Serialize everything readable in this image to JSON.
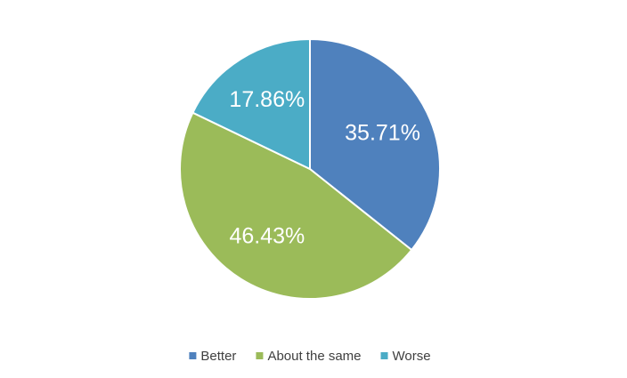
{
  "chart_data": {
    "type": "pie",
    "categories": [
      "Better",
      "About the same",
      "Worse"
    ],
    "values": [
      35.71,
      46.43,
      17.86
    ],
    "value_labels": [
      "35.71%",
      "46.43%",
      "17.86%"
    ],
    "colors": [
      "#4f81bd",
      "#9bbb59",
      "#4bacc6"
    ],
    "legend": "bottom"
  }
}
